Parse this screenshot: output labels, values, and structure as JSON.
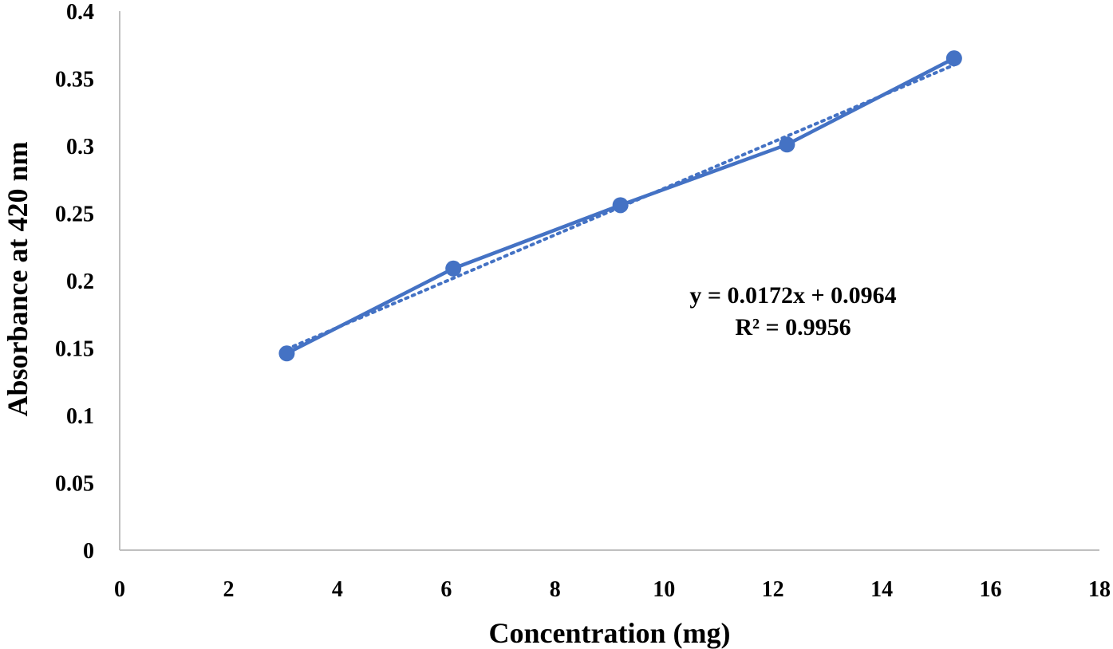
{
  "chart_data": {
    "type": "scatter",
    "xlabel": "Concentration (mg)",
    "ylabel": "Absorbance at 420 nm",
    "xlim": [
      0,
      18
    ],
    "ylim": [
      0,
      0.4
    ],
    "x_ticks": [
      "0",
      "2",
      "4",
      "6",
      "8",
      "10",
      "12",
      "14",
      "16",
      "18"
    ],
    "y_ticks": [
      "0",
      "0.05",
      "0.1",
      "0.15",
      "0.2",
      "0.25",
      "0.3",
      "0.35",
      "0.4"
    ],
    "grid": false,
    "series": [
      {
        "x": [
          3.07,
          6.13,
          9.2,
          12.26,
          15.33
        ],
        "y": [
          0.146,
          0.209,
          0.256,
          0.301,
          0.365
        ],
        "color": "#4472C4",
        "style": "line+marker"
      }
    ],
    "trendline": {
      "type": "linear",
      "slope": 0.0172,
      "intercept": 0.0964,
      "style": "dotted",
      "color": "#4472C4"
    },
    "annotations": {
      "equation": "y = 0.0172x + 0.0964",
      "r_squared": "R² = 0.9956"
    }
  }
}
